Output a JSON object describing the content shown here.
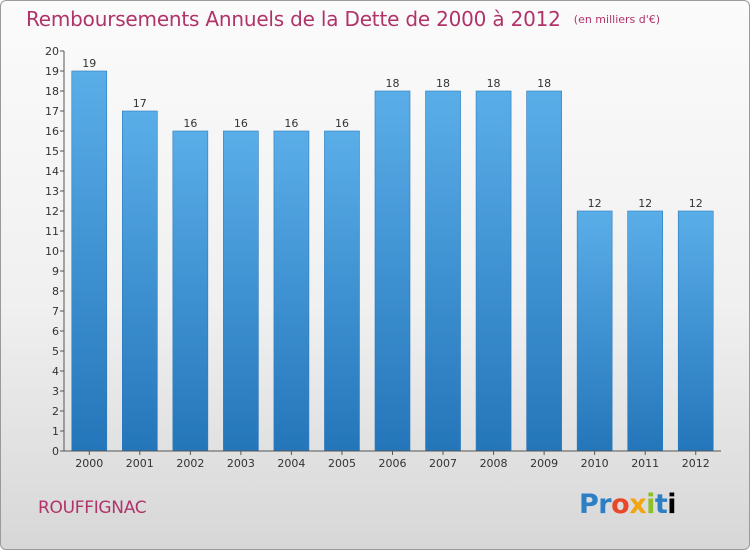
{
  "title": "Remboursements Annuels de la Dette de 2000 à 2012",
  "unit": "(en milliers d'€)",
  "commune": "ROUFFIGNAC",
  "logo_text": "Proxiti",
  "colors": {
    "title": "#b0336a",
    "bar_top": "#5aaee8",
    "bar_bottom": "#2476ba"
  },
  "chart_data": {
    "type": "bar",
    "title": "Remboursements Annuels de la Dette de 2000 à 2012",
    "subtitle": "(en milliers d'€)",
    "xlabel": "",
    "ylabel": "",
    "categories": [
      "2000",
      "2001",
      "2002",
      "2003",
      "2004",
      "2005",
      "2006",
      "2007",
      "2008",
      "2009",
      "2010",
      "2011",
      "2012"
    ],
    "values": [
      19,
      17,
      16,
      16,
      16,
      16,
      18,
      18,
      18,
      18,
      12,
      12,
      12
    ],
    "ylim": [
      0,
      20
    ],
    "yticks": [
      0,
      1,
      2,
      3,
      4,
      5,
      6,
      7,
      8,
      9,
      10,
      11,
      12,
      13,
      14,
      15,
      16,
      17,
      18,
      19,
      20
    ],
    "grid": false,
    "data_labels": true
  }
}
